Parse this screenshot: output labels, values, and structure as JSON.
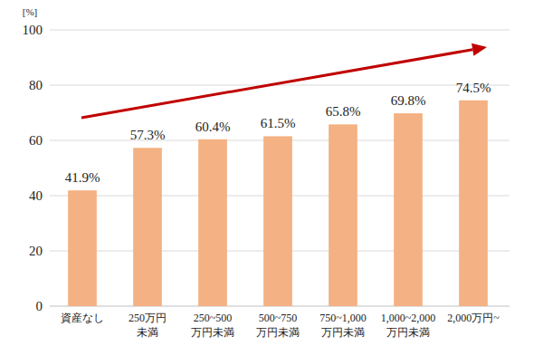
{
  "chart_data": {
    "type": "bar",
    "y_label": "[%]",
    "categories": [
      "資産なし",
      "250万円\n未満",
      "250~500\n万円未満",
      "500~750\n万円未満",
      "750~1,000\n万円未満",
      "1,000~2,000\n万円未満",
      "2,000万円~"
    ],
    "values": [
      41.9,
      57.3,
      60.4,
      61.5,
      65.8,
      69.8,
      74.5
    ],
    "value_labels": [
      "41.9%",
      "57.3%",
      "60.4%",
      "61.5%",
      "65.8%",
      "69.8%",
      "74.5%"
    ],
    "color": "#f4b183",
    "ylim": [
      0,
      100
    ],
    "yticks": [
      0,
      20,
      40,
      60,
      80,
      100
    ],
    "grid": true,
    "data_labels": true
  }
}
